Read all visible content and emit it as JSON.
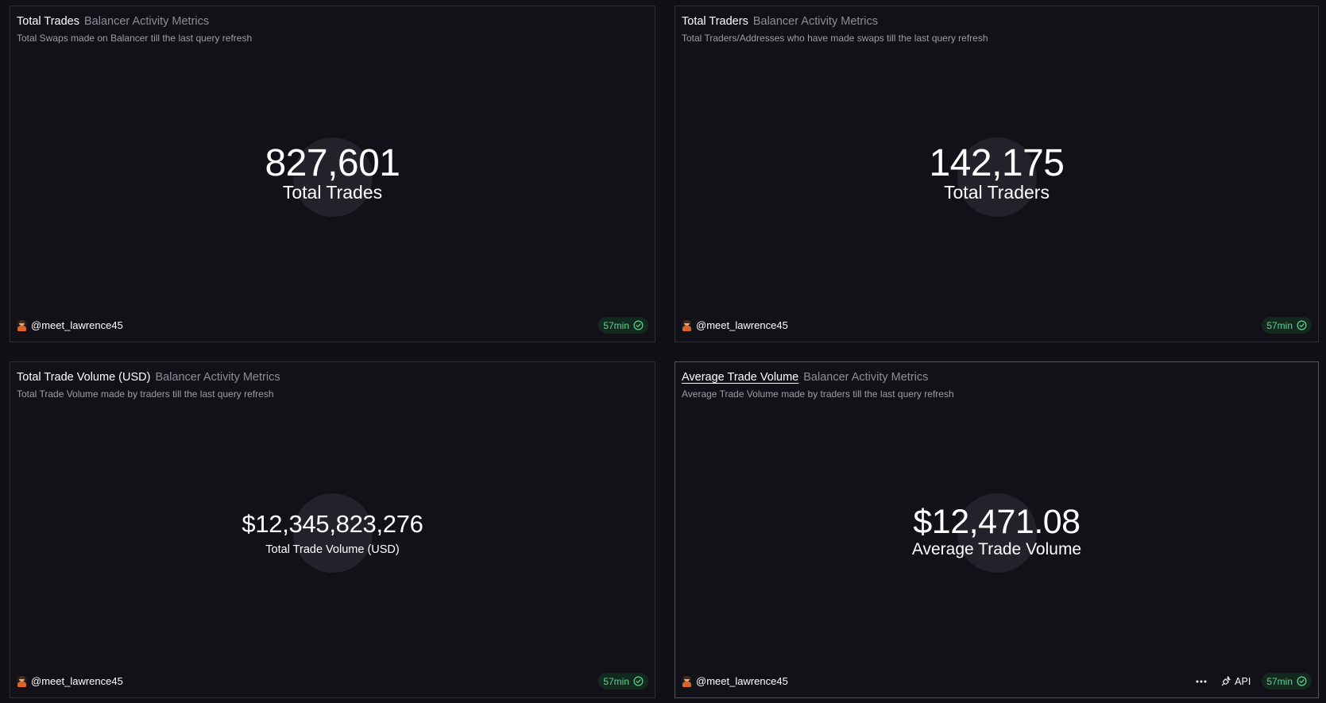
{
  "cards": [
    {
      "title": "Total Trades",
      "subtitle": "Balancer Activity Metrics",
      "description": "Total Swaps made on Balancer till the last query refresh",
      "value": "827,601",
      "label": "Total Trades",
      "author": "@meet_lawrence45",
      "refresh": "57min"
    },
    {
      "title": "Total Traders",
      "subtitle": "Balancer Activity Metrics",
      "description": "Total Traders/Addresses who have made swaps till the last query refresh",
      "value": "142,175",
      "label": "Total Traders",
      "author": "@meet_lawrence45",
      "refresh": "57min"
    },
    {
      "title": "Total Trade Volume (USD)",
      "subtitle": "Balancer Activity Metrics",
      "description": "Total Trade Volume made by traders till the last query refresh",
      "value": "$12,345,823,276",
      "label": "Total Trade Volume (USD)",
      "author": "@meet_lawrence45",
      "refresh": "57min"
    },
    {
      "title": "Average Trade Volume",
      "subtitle": "Balancer Activity Metrics",
      "description": "Average Trade Volume made by traders till the last query refresh",
      "value": "$12,471.08",
      "label": "Average Trade Volume",
      "author": "@meet_lawrence45",
      "refresh": "57min",
      "api_label": "API"
    }
  ],
  "icons": {
    "refresh_status": "check-circle-icon",
    "more": "more-horizontal-icon",
    "api": "api-plug-icon",
    "avatar": "user-avatar"
  },
  "colors": {
    "background": "#111016",
    "card_border": "#2e2d35",
    "badge_bg": "#13291f",
    "badge_text": "#5fd492",
    "counter_circle": "#23222a"
  }
}
